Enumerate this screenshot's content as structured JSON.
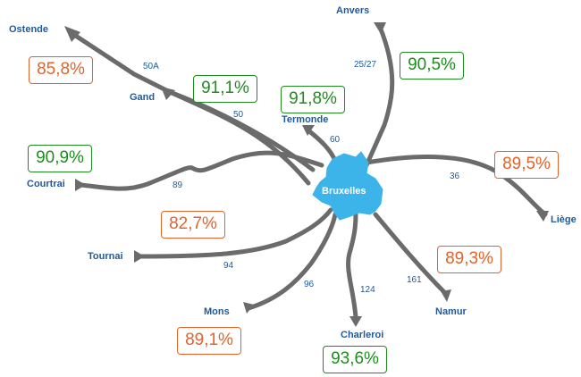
{
  "hub": {
    "name": "Bruxelles"
  },
  "colors": {
    "route": "#6b6b6b",
    "region": "#3cb4ea",
    "label_text": "#1f5a9c",
    "good": "#1e8c1e",
    "bad": "#e2642a"
  },
  "cities": {
    "ostende": "Ostende",
    "anvers": "Anvers",
    "gand": "Gand",
    "termonde": "Termonde",
    "courtrai": "Courtrai",
    "liege": "Liège",
    "tournai": "Tournai",
    "mons": "Mons",
    "charleroi": "Charleroi",
    "namur": "Namur"
  },
  "lines": {
    "ostende": "50A",
    "anvers": "25/27",
    "gand": "50",
    "termonde": "60",
    "courtrai": "89",
    "liege": "36",
    "tournai": "94",
    "mons": "96",
    "charleroi": "124",
    "namur": "161"
  },
  "punctuality": {
    "ostende": {
      "value": "85,8%",
      "status": "bad"
    },
    "anvers": {
      "value": "90,5%",
      "status": "good"
    },
    "gand": {
      "value": "91,1%",
      "status": "good"
    },
    "termonde": {
      "value": "91,8%",
      "status": "good"
    },
    "courtrai": {
      "value": "90,9%",
      "status": "good"
    },
    "liege": {
      "value": "89,5%",
      "status": "bad"
    },
    "tournai": {
      "value": "82,7%",
      "status": "bad"
    },
    "namur": {
      "value": "89,3%",
      "status": "bad"
    },
    "mons": {
      "value": "89,1%",
      "status": "bad"
    },
    "charleroi": {
      "value": "93,6%",
      "status": "good"
    }
  }
}
